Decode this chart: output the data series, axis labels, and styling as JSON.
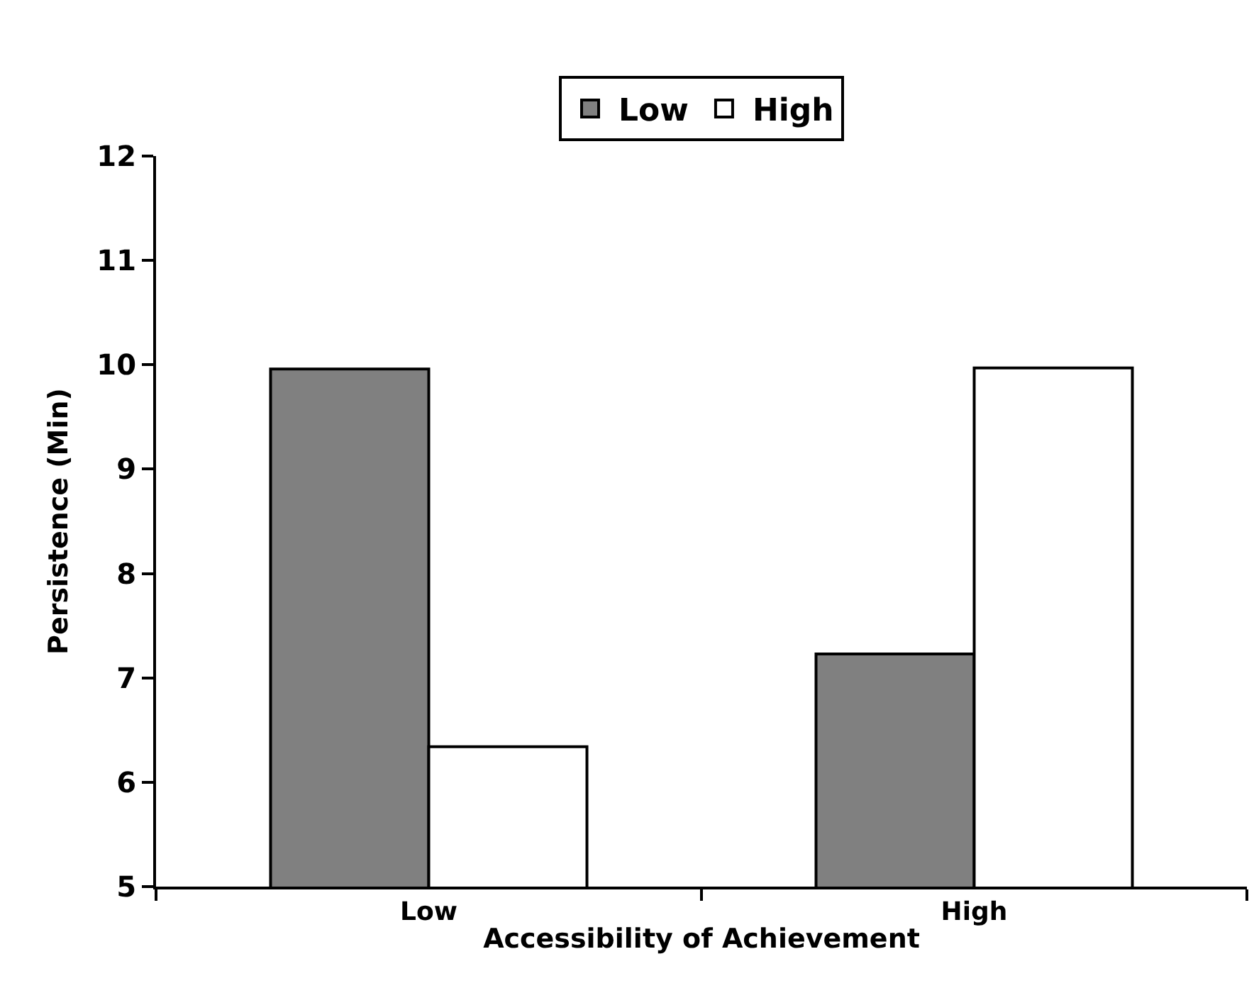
{
  "chart_data": {
    "type": "bar",
    "xlabel": "Accessibility of Achievement",
    "ylabel": "Persistence (Min)",
    "categories": [
      "Low",
      "High"
    ],
    "series": [
      {
        "name": "Low",
        "color": "#808080",
        "values": [
          9.96,
          7.23
        ]
      },
      {
        "name": "High",
        "color": "#ffffff",
        "values": [
          6.34,
          9.97
        ]
      }
    ],
    "ylim": [
      5,
      12
    ],
    "yticks": [
      5,
      6,
      7,
      8,
      9,
      10,
      11,
      12
    ],
    "legend": "top"
  }
}
